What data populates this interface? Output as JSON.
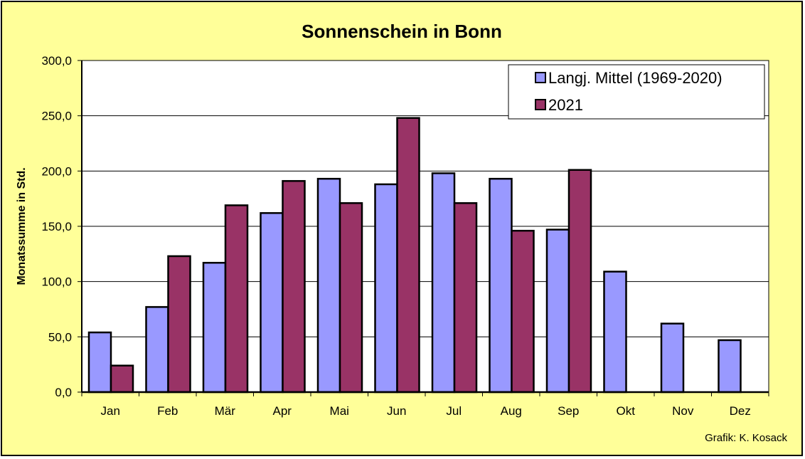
{
  "chart_data": {
    "type": "bar",
    "title": "Sonnenschein in Bonn",
    "ylabel": "Monatssumme in Std.",
    "xlabel": "",
    "categories": [
      "Jan",
      "Feb",
      "Mär",
      "Apr",
      "Mai",
      "Jun",
      "Jul",
      "Aug",
      "Sep",
      "Okt",
      "Nov",
      "Dez"
    ],
    "series": [
      {
        "name": "Langj. Mittel (1969-2020)",
        "color": "#9999ff",
        "values": [
          54,
          77,
          117,
          162,
          193,
          188,
          198,
          193,
          147,
          109,
          62,
          47
        ]
      },
      {
        "name": "2021",
        "color": "#993366",
        "values": [
          24,
          123,
          169,
          191,
          171,
          248,
          171,
          146,
          201,
          null,
          null,
          null
        ]
      }
    ],
    "ylim": [
      0,
      300
    ],
    "yticks": [
      "0,0",
      "50,0",
      "100,0",
      "150,0",
      "200,0",
      "250,0",
      "300,0"
    ],
    "plot_background": "#ffffff",
    "background": "#ffff99",
    "grid": true,
    "legend_position": "top-right"
  },
  "credit": "Grafik:  K. Kosack"
}
